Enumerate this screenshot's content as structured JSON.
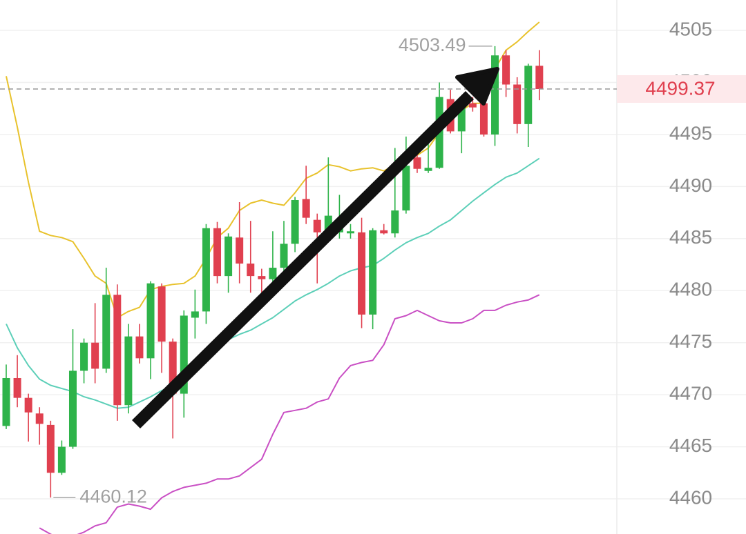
{
  "chart_data": {
    "type": "candlestick",
    "ylim": [
      4456.62,
      4507.92
    ],
    "yticks": [
      4460,
      4465,
      4470,
      4475,
      4480,
      4485,
      4490,
      4495,
      4500,
      4505
    ],
    "grid": true,
    "up_color": "#2eb34a",
    "down_color": "#e0404f",
    "open": [
      4467.0,
      4471.6,
      4469.7,
      4468.2,
      4467.1,
      4462.5,
      4465.0,
      4472.3,
      4475.0,
      4472.5,
      4479.6,
      4469.0,
      4475.6,
      4473.5,
      4480.4,
      4475.1,
      4470.1,
      4477.4,
      4478.0,
      4486.0,
      4481.4,
      4485.1,
      4482.6,
      4481.4,
      4481.1,
      4482.2,
      4484.5,
      4488.8,
      4486.8,
      4485.6,
      4485.6,
      4485.5,
      4485.6,
      4477.7,
      4485.8,
      4485.5,
      4487.7,
      4492.8,
      4491.5,
      4491.8,
      4498.4,
      4495.3,
      4498.0,
      4498.0,
      4495.0,
      4502.6,
      4499.8,
      4496.0,
      4501.6
    ],
    "high": [
      4472.9,
      4473.8,
      4470.1,
      4468.8,
      4467.5,
      4465.6,
      4476.3,
      4475.4,
      4478.8,
      4482.2,
      4480.6,
      4476.8,
      4476.8,
      4480.9,
      4480.7,
      4475.4,
      4478.1,
      4480.1,
      4486.4,
      4486.6,
      4485.5,
      4488.5,
      4486.7,
      4482.1,
      4485.7,
      4486.7,
      4489.0,
      4492.0,
      4487.4,
      4492.8,
      4489.2,
      4486.4,
      4487.0,
      4486.0,
      4486.4,
      4493.7,
      4494.8,
      4493.7,
      4494.6,
      4500.0,
      4499.3,
      4498.3,
      4498.6,
      4500.0,
      4503.49,
      4503.1,
      4500.5,
      4501.8,
      4503.1
    ],
    "low": [
      4466.7,
      4468.8,
      4465.5,
      4465.2,
      4460.12,
      4462.3,
      4464.8,
      4471.1,
      4471.1,
      4472.1,
      4467.5,
      4468.2,
      4473.0,
      4471.5,
      4472.1,
      4465.8,
      4467.8,
      4475.4,
      4476.8,
      4480.7,
      4479.8,
      4480.7,
      4479.8,
      4479.8,
      4480.7,
      4481.7,
      4483.7,
      4486.4,
      4480.7,
      4485.4,
      4485.0,
      4485.0,
      4476.4,
      4476.3,
      4485.4,
      4485.1,
      4487.4,
      4491.3,
      4491.3,
      4491.7,
      4495.1,
      4493.2,
      4497.2,
      4494.8,
      4493.9,
      4498.6,
      4495.1,
      4493.8,
      4498.3
    ],
    "close": [
      4471.6,
      4469.7,
      4468.3,
      4467.2,
      4462.5,
      4465.0,
      4472.3,
      4475.0,
      4472.5,
      4479.6,
      4469.0,
      4475.6,
      4473.5,
      4480.7,
      4475.1,
      4470.1,
      4477.6,
      4478.0,
      4486.0,
      4481.4,
      4485.2,
      4482.6,
      4481.4,
      4481.1,
      4482.2,
      4484.5,
      4488.7,
      4487.0,
      4485.6,
      4487.2,
      4486.7,
      4485.7,
      4477.7,
      4485.8,
      4485.5,
      4487.7,
      4492.0,
      4491.7,
      4491.8,
      4498.6,
      4495.3,
      4498.0,
      4497.6,
      4495.0,
      4502.6,
      4499.8,
      4496.0,
      4501.6,
      4499.37
    ],
    "lines": [
      {
        "color": "#e8c22c",
        "values": [
          4500.6,
          4495.7,
          4490.4,
          4485.7,
          4485.3,
          4485.1,
          4484.7,
          4483.1,
          4481.4,
          4480.7,
          4477.4,
          4478.0,
          4478.4,
          4480.1,
          4480.4,
          4480.6,
          4480.7,
          4481.4,
          4483.1,
          4485.1,
          4486.0,
          4487.7,
          4488.4,
          4488.7,
          4488.4,
          4488.2,
          4489.4,
          4490.8,
          4491.3,
          4492.1,
          4491.9,
          4491.5,
          4491.7,
          4491.8,
          4491.5,
          4492.1,
          4492.5,
          4493.0,
          4493.7,
          4495.2,
          4497.0,
          4497.3,
          4498.0,
          4498.0,
          4501.3,
          4503.1,
          4503.9,
          4504.9,
          4505.8
        ]
      },
      {
        "color": "#5ccfb8",
        "values": [
          4476.8,
          4474.5,
          4472.8,
          4471.5,
          4470.9,
          4470.6,
          4470.3,
          4469.8,
          4469.5,
          4469.1,
          4468.7,
          4468.8,
          4469.3,
          4469.8,
          4470.4,
          4470.9,
          4471.6,
          4472.7,
          4473.8,
          4474.5,
          4475.3,
          4475.8,
          4476.2,
          4476.8,
          4477.4,
          4478.2,
          4479.0,
          4479.6,
          4480.1,
          4480.7,
          4481.4,
          4481.9,
          4482.2,
          4482.4,
          4483.1,
          4483.9,
          4484.6,
          4485.1,
          4485.5,
          4486.2,
          4486.8,
          4487.7,
          4488.6,
          4489.4,
          4490.2,
          4490.9,
          4491.3,
          4492.0,
          4492.7
        ]
      },
      {
        "color": "#c94fc4",
        "values": [
          null,
          null,
          null,
          4457.2,
          4456.6,
          4456.2,
          4456.4,
          4456.8,
          4457.4,
          4457.7,
          4459.2,
          4459.5,
          4459.3,
          4459.0,
          4460.1,
          4460.7,
          4461.1,
          4461.3,
          4461.5,
          4461.9,
          4461.9,
          4462.2,
          4463.0,
          4463.8,
          4466.2,
          4468.3,
          4468.5,
          4468.7,
          4469.3,
          4469.6,
          4471.6,
          4472.8,
          4473.1,
          4473.3,
          4474.8,
          4477.3,
          4477.6,
          4478.1,
          4477.6,
          4477.1,
          4476.9,
          4476.9,
          4477.3,
          4478.1,
          4478.1,
          4478.6,
          4478.9,
          4479.1,
          4479.6
        ]
      }
    ]
  }
}
